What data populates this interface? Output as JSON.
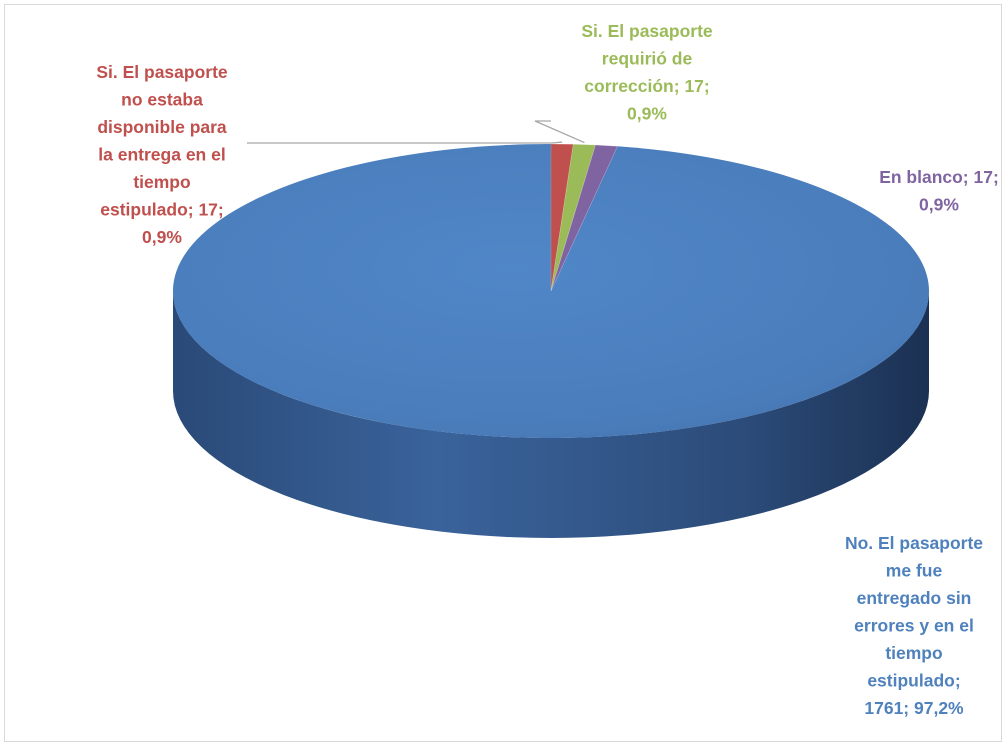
{
  "chart_data": {
    "type": "pie",
    "three_d": true,
    "title": "",
    "legend": "none",
    "slices": [
      {
        "label_lines": [
          "Si. El pasaporte",
          "no estaba",
          "disponible para",
          "la entrega en el",
          "tiempo",
          "estipulado; 17;",
          "0,9%"
        ],
        "category": "Si. El pasaporte no estaba disponible para la entrega en el tiempo estipulado",
        "value": 17,
        "percent": "0,9%",
        "color": "#c0504d"
      },
      {
        "label_lines": [
          "Si. El pasaporte",
          "requirió de",
          "corrección; 17;",
          "0,9%"
        ],
        "category": "Si. El pasaporte requirió de corrección",
        "value": 17,
        "percent": "0,9%",
        "color": "#9bbb59"
      },
      {
        "label_lines": [
          "En blanco; 17;",
          "0,9%"
        ],
        "category": "En blanco",
        "value": 17,
        "percent": "0,9%",
        "color": "#8064a2"
      },
      {
        "label_lines": [
          "No. El pasaporte",
          "me fue",
          "entregado sin",
          "errores y en el",
          "tiempo",
          "estipulado;",
          "1761; 97,2%"
        ],
        "category": "No. El pasaporte me fue entregado sin errores y en el tiempo estipulado",
        "value": 1761,
        "percent": "97,2%",
        "color": "#4f81bd"
      }
    ]
  }
}
